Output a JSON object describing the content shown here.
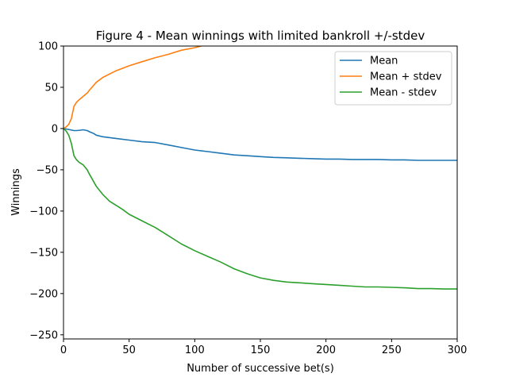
{
  "chart_data": {
    "type": "line",
    "title": "Figure 4 - Mean winnings with limited bankroll +/-stdev",
    "xlabel": "Number of successive bet(s)",
    "ylabel": "Winnings",
    "xlim": [
      0,
      300
    ],
    "ylim": [
      -255,
      100
    ],
    "xticks": [
      0,
      50,
      100,
      150,
      200,
      250,
      300
    ],
    "yticks": [
      -250,
      -200,
      -150,
      -100,
      -50,
      0,
      50,
      100
    ],
    "xtick_labels": [
      "0",
      "50",
      "100",
      "150",
      "200",
      "250",
      "300"
    ],
    "ytick_labels": [
      "−250",
      "−200",
      "−150",
      "−100",
      "−50",
      "0",
      "50",
      "100"
    ],
    "grid": false,
    "legend_position": "top-right",
    "series": [
      {
        "name": "Mean",
        "color": "#1f77b4",
        "x": [
          0,
          2,
          5,
          8,
          10,
          13,
          15,
          18,
          20,
          23,
          25,
          30,
          40,
          50,
          60,
          70,
          80,
          90,
          100,
          110,
          120,
          130,
          140,
          150,
          160,
          170,
          180,
          190,
          200,
          210,
          220,
          230,
          240,
          250,
          260,
          270,
          280,
          290,
          300
        ],
        "y": [
          0,
          -0.5,
          -1.5,
          -2.5,
          -2.5,
          -2,
          -1.5,
          -2.5,
          -4,
          -6,
          -8,
          -10,
          -12,
          -14,
          -16,
          -17,
          -20,
          -23,
          -26,
          -28,
          -30,
          -32,
          -33,
          -34,
          -35,
          -35.5,
          -36,
          -36.5,
          -37,
          -37,
          -37.5,
          -37.5,
          -37.5,
          -38,
          -38,
          -38.5,
          -38.5,
          -38.5,
          -38.5
        ]
      },
      {
        "name": "Mean + stdev",
        "color": "#ff7f0e",
        "x": [
          0,
          2,
          4,
          6,
          8,
          10,
          12,
          15,
          18,
          20,
          25,
          30,
          35,
          40,
          50,
          60,
          70,
          80,
          90,
          100,
          105
        ],
        "y": [
          0,
          2,
          5,
          12,
          27,
          32,
          35,
          39,
          43,
          47,
          56,
          62,
          66,
          70,
          76,
          81,
          86,
          90,
          95,
          98,
          100
        ]
      },
      {
        "name": "Mean - stdev",
        "color": "#2ca02c",
        "x": [
          0,
          2,
          4,
          6,
          8,
          10,
          12,
          15,
          18,
          20,
          25,
          30,
          35,
          40,
          45,
          50,
          60,
          70,
          80,
          90,
          100,
          110,
          120,
          130,
          140,
          150,
          160,
          170,
          180,
          190,
          200,
          210,
          220,
          230,
          240,
          250,
          260,
          270,
          280,
          290,
          300
        ],
        "y": [
          0,
          -3,
          -8,
          -18,
          -33,
          -38,
          -41,
          -44,
          -50,
          -56,
          -70,
          -80,
          -88,
          -93,
          -98,
          -104,
          -112,
          -120,
          -130,
          -140,
          -148,
          -155,
          -162,
          -170,
          -176,
          -181,
          -184,
          -186,
          -187,
          -188,
          -189,
          -190,
          -191,
          -192,
          -192,
          -192.5,
          -193,
          -194,
          -194,
          -194.5,
          -194.5
        ]
      }
    ]
  }
}
